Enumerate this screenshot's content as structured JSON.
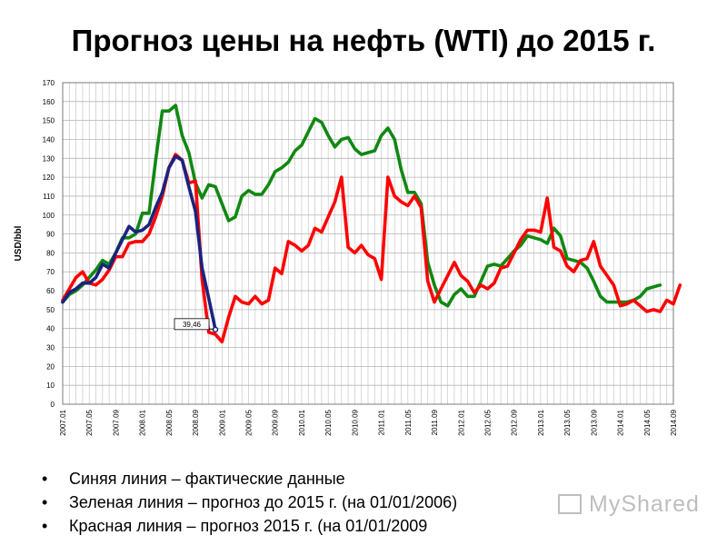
{
  "title": "Прогноз цены на нефть (WTI) до 2015 г.",
  "chart_data": {
    "type": "line",
    "ylabel": "USD/bbl",
    "xlabel": "",
    "ylim": [
      0,
      170
    ],
    "yticks": [
      0,
      10,
      20,
      30,
      40,
      50,
      60,
      70,
      80,
      90,
      100,
      110,
      120,
      130,
      140,
      150,
      160,
      170
    ],
    "xlim": [
      "2007.01",
      "2014.09"
    ],
    "xticks": [
      "2007.01",
      "2007.05",
      "2007.09",
      "2008.01",
      "2008.05",
      "2008.09",
      "2009.01",
      "2009.05",
      "2009.09",
      "2010.01",
      "2010.05",
      "2010.09",
      "2011.01",
      "2011.05",
      "2011.09",
      "2012.01",
      "2012.05",
      "2012.09",
      "2013.01",
      "2013.05",
      "2013.09",
      "2014.01",
      "2014.05",
      "2014.09"
    ],
    "grid": true,
    "series": [
      {
        "key": "green",
        "color": "#118811",
        "points": [
          [
            "2007.01",
            54
          ],
          [
            "2007.02",
            58
          ],
          [
            "2007.03",
            60
          ],
          [
            "2007.04",
            63
          ],
          [
            "2007.05",
            67
          ],
          [
            "2007.06",
            71
          ],
          [
            "2007.07",
            76
          ],
          [
            "2007.08",
            74
          ],
          [
            "2007.09",
            80
          ],
          [
            "2007.10",
            88
          ],
          [
            "2007.11",
            88
          ],
          [
            "2007.12",
            90
          ],
          [
            "2008.01",
            101
          ],
          [
            "2008.02",
            101
          ],
          [
            "2008.03",
            129
          ],
          [
            "2008.04",
            155
          ],
          [
            "2008.05",
            155
          ],
          [
            "2008.06",
            158
          ],
          [
            "2008.07",
            142
          ],
          [
            "2008.08",
            133
          ],
          [
            "2008.09",
            117
          ],
          [
            "2008.10",
            109
          ],
          [
            "2008.11",
            116
          ],
          [
            "2008.12",
            115
          ],
          [
            "2009.01",
            106
          ],
          [
            "2009.02",
            97
          ],
          [
            "2009.03",
            99
          ],
          [
            "2009.04",
            110
          ],
          [
            "2009.05",
            113
          ],
          [
            "2009.06",
            111
          ],
          [
            "2009.07",
            111
          ],
          [
            "2009.08",
            116
          ],
          [
            "2009.09",
            123
          ],
          [
            "2009.10",
            125
          ],
          [
            "2009.11",
            128
          ],
          [
            "2009.12",
            134
          ],
          [
            "2010.01",
            137
          ],
          [
            "2010.02",
            144
          ],
          [
            "2010.03",
            151
          ],
          [
            "2010.04",
            149
          ],
          [
            "2010.05",
            142
          ],
          [
            "2010.06",
            136
          ],
          [
            "2010.07",
            140
          ],
          [
            "2010.08",
            141
          ],
          [
            "2010.09",
            135
          ],
          [
            "2010.10",
            132
          ],
          [
            "2010.11",
            133
          ],
          [
            "2010.12",
            134
          ],
          [
            "2011.01",
            142
          ],
          [
            "2011.02",
            146
          ],
          [
            "2011.03",
            140
          ],
          [
            "2011.04",
            124
          ],
          [
            "2011.05",
            112
          ],
          [
            "2011.06",
            112
          ],
          [
            "2011.07",
            106
          ],
          [
            "2011.08",
            75
          ],
          [
            "2011.09",
            63
          ],
          [
            "2011.10",
            54
          ],
          [
            "2011.11",
            52
          ],
          [
            "2011.12",
            58
          ],
          [
            "2012.01",
            61
          ],
          [
            "2012.02",
            57
          ],
          [
            "2012.03",
            57
          ],
          [
            "2012.04",
            65
          ],
          [
            "2012.05",
            73
          ],
          [
            "2012.06",
            74
          ],
          [
            "2012.07",
            73
          ],
          [
            "2012.08",
            77
          ],
          [
            "2012.09",
            81
          ],
          [
            "2012.10",
            84
          ],
          [
            "2012.11",
            89
          ],
          [
            "2012.12",
            88
          ],
          [
            "2013.01",
            87
          ],
          [
            "2013.02",
            85
          ],
          [
            "2013.03",
            93
          ],
          [
            "2013.04",
            89
          ],
          [
            "2013.05",
            77
          ],
          [
            "2013.06",
            76
          ],
          [
            "2013.07",
            75
          ],
          [
            "2013.08",
            72
          ],
          [
            "2013.09",
            65
          ],
          [
            "2013.10",
            57
          ],
          [
            "2013.11",
            54
          ],
          [
            "2013.12",
            54
          ],
          [
            "2014.01",
            54
          ],
          [
            "2014.02",
            54
          ],
          [
            "2014.03",
            55
          ],
          [
            "2014.04",
            57
          ],
          [
            "2014.05",
            61
          ],
          [
            "2014.06",
            62
          ],
          [
            "2014.07",
            63
          ]
        ]
      },
      {
        "key": "red",
        "color": "#ff0000",
        "points": [
          [
            "2007.01",
            55
          ],
          [
            "2007.02",
            61
          ],
          [
            "2007.03",
            67
          ],
          [
            "2007.04",
            70
          ],
          [
            "2007.05",
            64
          ],
          [
            "2007.06",
            63
          ],
          [
            "2007.07",
            66
          ],
          [
            "2007.08",
            71
          ],
          [
            "2007.09",
            78
          ],
          [
            "2007.10",
            78
          ],
          [
            "2007.11",
            85
          ],
          [
            "2007.12",
            86
          ],
          [
            "2008.01",
            86
          ],
          [
            "2008.02",
            90
          ],
          [
            "2008.03",
            99
          ],
          [
            "2008.04",
            110
          ],
          [
            "2008.05",
            125
          ],
          [
            "2008.06",
            132
          ],
          [
            "2008.07",
            129
          ],
          [
            "2008.08",
            117
          ],
          [
            "2008.09",
            118
          ],
          [
            "2008.10",
            66
          ],
          [
            "2008.11",
            38
          ],
          [
            "2008.12",
            37
          ],
          [
            "2009.01",
            33
          ],
          [
            "2009.02",
            46
          ],
          [
            "2009.03",
            57
          ],
          [
            "2009.04",
            54
          ],
          [
            "2009.05",
            53
          ],
          [
            "2009.06",
            57
          ],
          [
            "2009.07",
            53
          ],
          [
            "2009.08",
            55
          ],
          [
            "2009.09",
            72
          ],
          [
            "2009.10",
            69
          ],
          [
            "2009.11",
            86
          ],
          [
            "2009.12",
            84
          ],
          [
            "2010.01",
            81
          ],
          [
            "2010.02",
            84
          ],
          [
            "2010.03",
            93
          ],
          [
            "2010.04",
            91
          ],
          [
            "2010.05",
            99
          ],
          [
            "2010.06",
            107
          ],
          [
            "2010.07",
            120
          ],
          [
            "2010.08",
            83
          ],
          [
            "2010.09",
            80
          ],
          [
            "2010.10",
            84
          ],
          [
            "2010.11",
            79
          ],
          [
            "2010.12",
            77
          ],
          [
            "2011.01",
            66
          ],
          [
            "2011.02",
            120
          ],
          [
            "2011.03",
            110
          ],
          [
            "2011.04",
            107
          ],
          [
            "2011.05",
            105
          ],
          [
            "2011.06",
            110
          ],
          [
            "2011.07",
            104
          ],
          [
            "2011.08",
            65
          ],
          [
            "2011.09",
            54
          ],
          [
            "2011.10",
            61
          ],
          [
            "2011.11",
            68
          ],
          [
            "2011.12",
            75
          ],
          [
            "2012.01",
            68
          ],
          [
            "2012.02",
            65
          ],
          [
            "2012.03",
            59
          ],
          [
            "2012.04",
            63
          ],
          [
            "2012.05",
            61
          ],
          [
            "2012.06",
            64
          ],
          [
            "2012.07",
            72
          ],
          [
            "2012.08",
            73
          ],
          [
            "2012.09",
            80
          ],
          [
            "2012.10",
            87
          ],
          [
            "2012.11",
            92
          ],
          [
            "2012.12",
            92
          ],
          [
            "2013.01",
            91
          ],
          [
            "2013.02",
            109
          ],
          [
            "2013.03",
            83
          ],
          [
            "2013.04",
            81
          ],
          [
            "2013.05",
            73
          ],
          [
            "2013.06",
            70
          ],
          [
            "2013.07",
            76
          ],
          [
            "2013.08",
            77
          ],
          [
            "2013.09",
            86
          ],
          [
            "2013.10",
            73
          ],
          [
            "2013.11",
            68
          ],
          [
            "2013.12",
            63
          ],
          [
            "2014.01",
            52
          ],
          [
            "2014.02",
            53
          ],
          [
            "2014.03",
            55
          ],
          [
            "2014.04",
            52
          ],
          [
            "2014.05",
            49
          ],
          [
            "2014.06",
            50
          ],
          [
            "2014.07",
            49
          ],
          [
            "2014.08",
            55
          ],
          [
            "2014.09",
            53
          ],
          [
            "2014.10",
            63
          ]
        ]
      },
      {
        "key": "blue",
        "color": "#1a237e",
        "points": [
          [
            "2007.01",
            54
          ],
          [
            "2007.02",
            59
          ],
          [
            "2007.03",
            61
          ],
          [
            "2007.04",
            64
          ],
          [
            "2007.05",
            64
          ],
          [
            "2007.06",
            67
          ],
          [
            "2007.07",
            74
          ],
          [
            "2007.08",
            72
          ],
          [
            "2007.09",
            80
          ],
          [
            "2007.10",
            87
          ],
          [
            "2007.11",
            94
          ],
          [
            "2007.12",
            91
          ],
          [
            "2008.01",
            92
          ],
          [
            "2008.02",
            95
          ],
          [
            "2008.03",
            104
          ],
          [
            "2008.04",
            112
          ],
          [
            "2008.05",
            125
          ],
          [
            "2008.06",
            131
          ],
          [
            "2008.07",
            129
          ],
          [
            "2008.08",
            115
          ],
          [
            "2008.09",
            102
          ],
          [
            "2008.10",
            72
          ],
          [
            "2008.11",
            56
          ],
          [
            "2008.12",
            39.46
          ]
        ]
      }
    ],
    "annotations": [
      {
        "text": "39,46",
        "x": "2008.12",
        "y": 39.46
      }
    ],
    "legend": "none"
  },
  "bullets": [
    "Синяя линия – фактические данные",
    "Зеленая линия – прогноз до 2015 г. (на 01/01/2006)",
    "Красная линия – прогноз 2015 г. (на 01/01/2009"
  ],
  "watermark": "MyShared"
}
